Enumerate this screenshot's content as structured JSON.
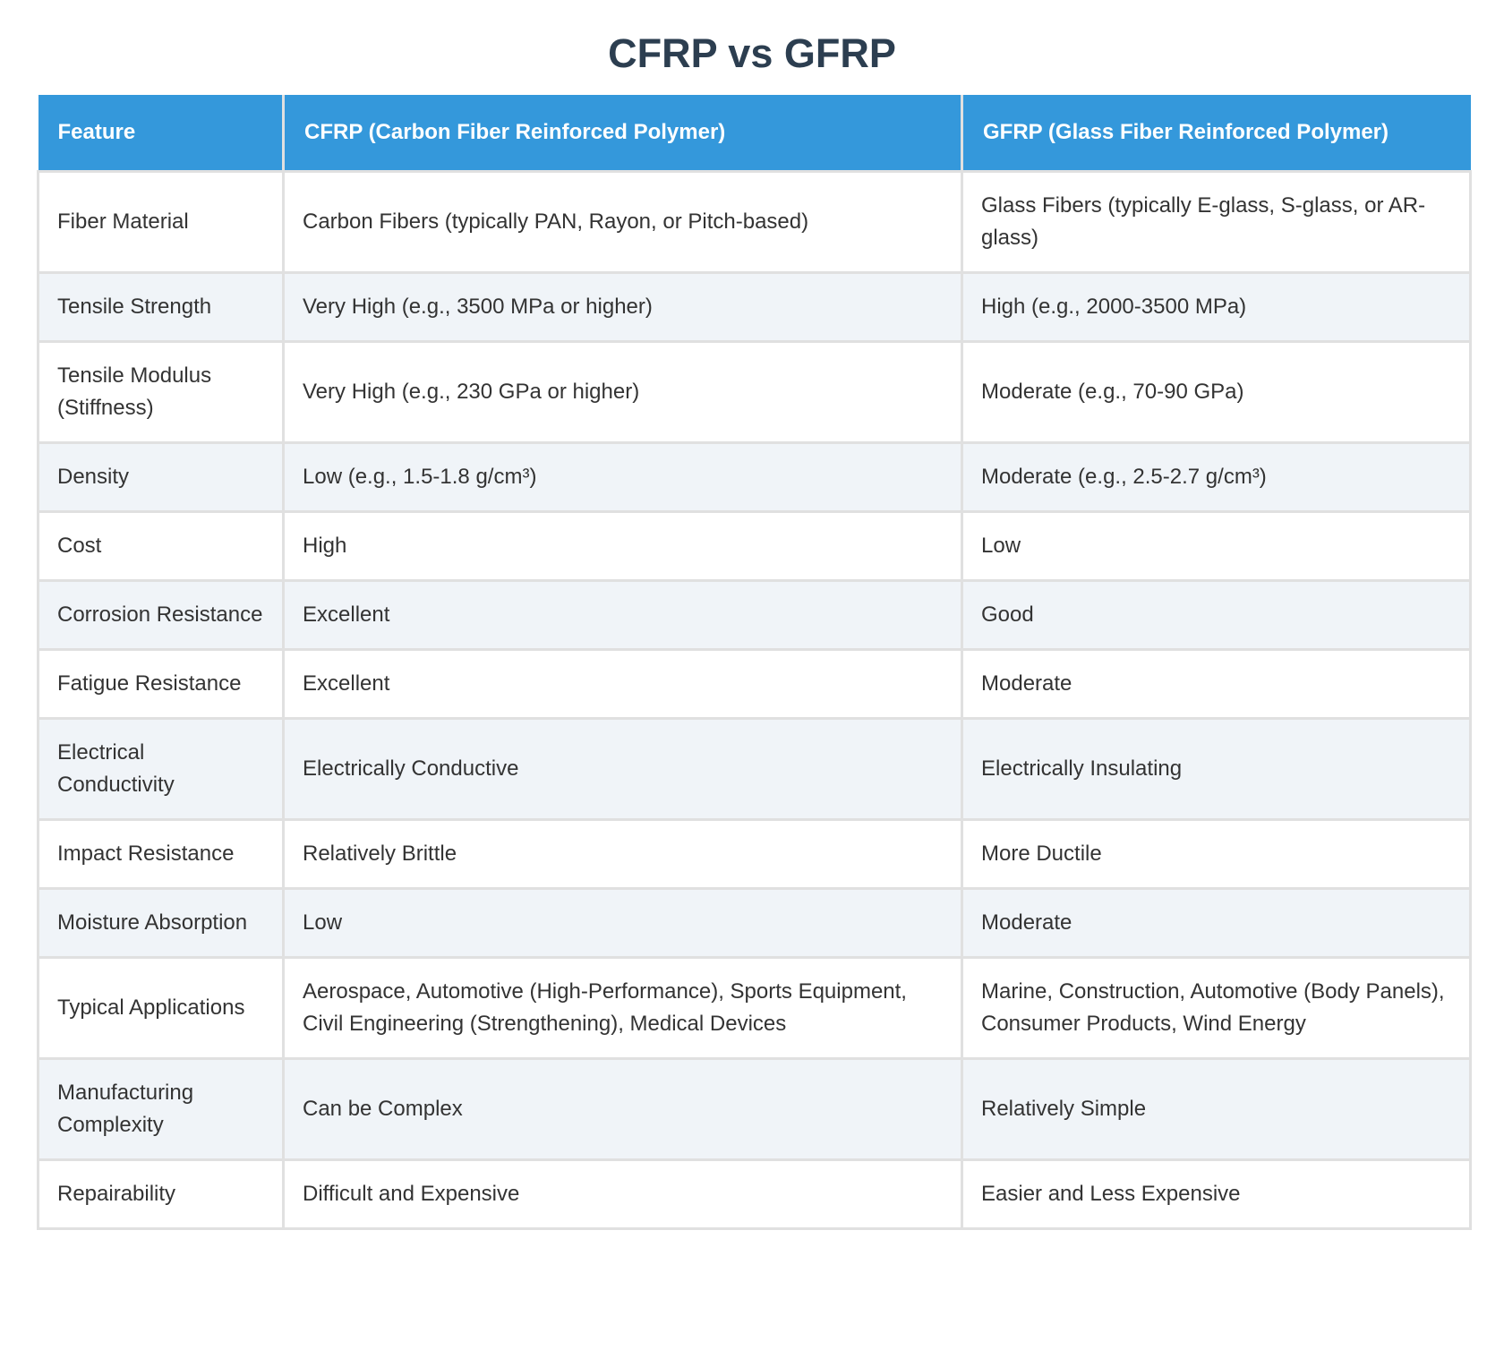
{
  "title": "CFRP vs GFRP",
  "table": {
    "headers": [
      "Feature",
      "CFRP (Carbon Fiber Reinforced Polymer)",
      "GFRP (Glass Fiber Reinforced Polymer)"
    ],
    "rows": [
      [
        "Fiber Material",
        "Carbon Fibers (typically PAN, Rayon, or Pitch-based)",
        "Glass Fibers (typically E-glass, S-glass, or AR-glass)"
      ],
      [
        "Tensile Strength",
        "Very High (e.g., 3500 MPa or higher)",
        "High (e.g., 2000-3500 MPa)"
      ],
      [
        "Tensile Modulus (Stiffness)",
        "Very High (e.g., 230 GPa or higher)",
        "Moderate (e.g., 70-90 GPa)"
      ],
      [
        "Density",
        "Low (e.g., 1.5-1.8 g/cm³)",
        "Moderate (e.g., 2.5-2.7 g/cm³)"
      ],
      [
        "Cost",
        "High",
        "Low"
      ],
      [
        "Corrosion Resistance",
        "Excellent",
        "Good"
      ],
      [
        "Fatigue Resistance",
        "Excellent",
        "Moderate"
      ],
      [
        "Electrical Conductivity",
        "Electrically Conductive",
        "Electrically Insulating"
      ],
      [
        "Impact Resistance",
        "Relatively Brittle",
        "More Ductile"
      ],
      [
        "Moisture Absorption",
        "Low",
        "Moderate"
      ],
      [
        "Typical Applications",
        "Aerospace, Automotive (High-Performance), Sports Equipment, Civil Engineering (Strengthening), Medical Devices",
        "Marine, Construction, Automotive (Body Panels), Consumer Products, Wind Energy"
      ],
      [
        "Manufacturing Complexity",
        "Can be Complex",
        "Relatively Simple"
      ],
      [
        "Repairability",
        "Difficult and Expensive",
        "Easier and Less Expensive"
      ]
    ]
  },
  "colors": {
    "header_bg": "#3498db",
    "header_text": "#ffffff",
    "title_text": "#2c3e50",
    "row_alt_bg": "#f0f4f8",
    "border": "#e0e0e0"
  }
}
